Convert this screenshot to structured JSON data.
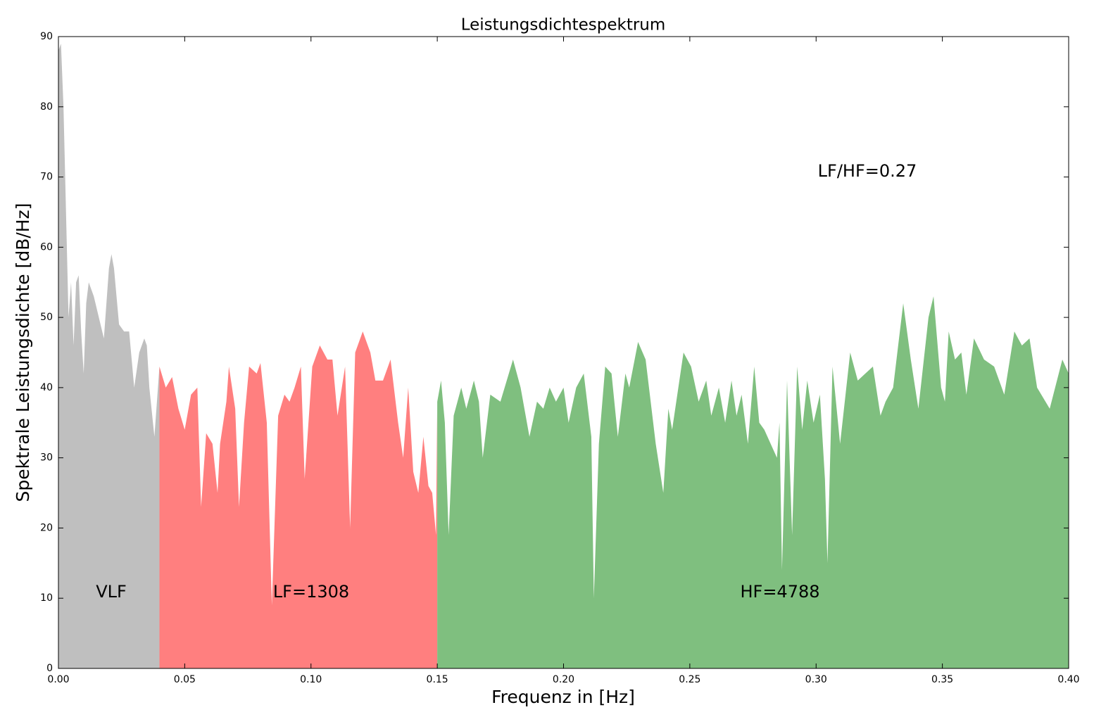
{
  "chart_data": {
    "type": "area",
    "title": "Leistungsdichtespektrum",
    "x_label": "Frequenz in [Hz]",
    "y_label": "Spektrale Leistungsdichte [dB/Hz]",
    "annotations": [
      "VLF",
      "LF=1308",
      "HF=4788",
      "LF/HF=0.27"
    ],
    "xlim": [
      0,
      0.4
    ],
    "ylim": [
      0,
      90
    ],
    "xticks": [
      {
        "value": 0,
        "label": "0.00"
      },
      0.05,
      {
        "value": 0.1,
        "label": "0.10"
      },
      0.15,
      {
        "value": 0.2,
        "label": "0.20"
      },
      0.25,
      {
        "value": 0.3,
        "label": "0.30"
      },
      0.35,
      {
        "value": 0.4,
        "label": "0.40"
      }
    ],
    "yticks": [
      0,
      10,
      20,
      30,
      40,
      50,
      60,
      70,
      80,
      90
    ],
    "series": [
      {
        "color": "#bfbfbf",
        "x": [
          0,
          0.001,
          0.002,
          0.003,
          0.004,
          0.005,
          0.006,
          0.007,
          0.008,
          0.009,
          0.01,
          0.011,
          0.012,
          0.014,
          0.016,
          0.018,
          0.02,
          0.021,
          0.022,
          0.024,
          0.026,
          0.028,
          0.03,
          0.032,
          0.034,
          0.035,
          0.036,
          0.038,
          0.04
        ],
        "values": [
          88,
          89,
          80,
          65,
          50,
          55,
          46,
          55,
          56,
          48,
          42,
          52,
          55,
          53,
          50,
          47,
          57,
          59,
          57,
          49,
          48,
          48,
          40,
          45,
          47,
          46,
          40,
          33,
          43
        ]
      },
      {
        "color": "#ff7f7f",
        "x": [
          0.04,
          0.0425,
          0.045,
          0.0475,
          0.05,
          0.0525,
          0.055,
          0.0565,
          0.0585,
          0.061,
          0.063,
          0.064,
          0.0665,
          0.0675,
          0.07,
          0.0715,
          0.0735,
          0.0755,
          0.0785,
          0.08,
          0.0825,
          0.0845,
          0.087,
          0.0895,
          0.0915,
          0.0935,
          0.096,
          0.0975,
          0.1005,
          0.1035,
          0.1065,
          0.1085,
          0.1105,
          0.1135,
          0.1155,
          0.1175,
          0.1205,
          0.1235,
          0.1255,
          0.1285,
          0.1315,
          0.1345,
          0.1365,
          0.1385,
          0.1405,
          0.1425,
          0.1445,
          0.1465,
          0.148,
          0.1495,
          0.15
        ],
        "values": [
          43,
          40,
          41.5,
          37,
          34,
          39,
          40,
          23,
          33.5,
          32,
          25,
          32,
          38,
          43,
          37,
          23,
          35,
          43,
          42,
          43.5,
          35,
          9,
          36,
          39,
          38,
          40,
          43,
          27,
          43,
          46,
          44,
          44,
          36,
          43,
          20,
          45,
          48,
          45,
          41,
          41,
          44,
          35,
          30,
          40,
          28,
          25,
          33,
          26,
          25,
          19,
          38
        ]
      },
      {
        "color": "#7fbf7f",
        "x": [
          0.15,
          0.1515,
          0.153,
          0.1545,
          0.1565,
          0.1595,
          0.1615,
          0.1645,
          0.1665,
          0.168,
          0.171,
          0.175,
          0.18,
          0.183,
          0.1865,
          0.1895,
          0.192,
          0.1945,
          0.197,
          0.2,
          0.202,
          0.205,
          0.208,
          0.211,
          0.212,
          0.214,
          0.2165,
          0.219,
          0.2215,
          0.2245,
          0.226,
          0.2295,
          0.2325,
          0.2365,
          0.2395,
          0.2415,
          0.243,
          0.2475,
          0.2505,
          0.2535,
          0.2565,
          0.2585,
          0.2615,
          0.264,
          0.2665,
          0.2685,
          0.2705,
          0.273,
          0.2755,
          0.2775,
          0.2795,
          0.2845,
          0.2855,
          0.2865,
          0.2885,
          0.2905,
          0.2925,
          0.2945,
          0.2965,
          0.299,
          0.3015,
          0.3035,
          0.3045,
          0.3065,
          0.3095,
          0.3135,
          0.3165,
          0.3195,
          0.3225,
          0.3255,
          0.3275,
          0.3305,
          0.3345,
          0.3375,
          0.3405,
          0.3445,
          0.3465,
          0.3495,
          0.351,
          0.3525,
          0.355,
          0.3575,
          0.3595,
          0.3625,
          0.3665,
          0.3705,
          0.3745,
          0.3785,
          0.3815,
          0.3845,
          0.3875,
          0.3925,
          0.3975,
          0.4
        ],
        "values": [
          38,
          41,
          35,
          19,
          36,
          40,
          37,
          41,
          38,
          30,
          39,
          38,
          44,
          40,
          33,
          38,
          37,
          40,
          38,
          40,
          35,
          40,
          42,
          33,
          10,
          32,
          43,
          42,
          33,
          42,
          40,
          46.5,
          44,
          32,
          25,
          37,
          34,
          45,
          43,
          38,
          41,
          36,
          40,
          35,
          41,
          36,
          39,
          32,
          43,
          35,
          34,
          30,
          35,
          14,
          41,
          19,
          43,
          34,
          41,
          35,
          39,
          27,
          15,
          43,
          32,
          45,
          41,
          42,
          43,
          36,
          38,
          40,
          52,
          44,
          37,
          50,
          53,
          40,
          38,
          48,
          44,
          45,
          39,
          47,
          44,
          43,
          39,
          48,
          46,
          47,
          40,
          37,
          44,
          42
        ]
      }
    ]
  }
}
